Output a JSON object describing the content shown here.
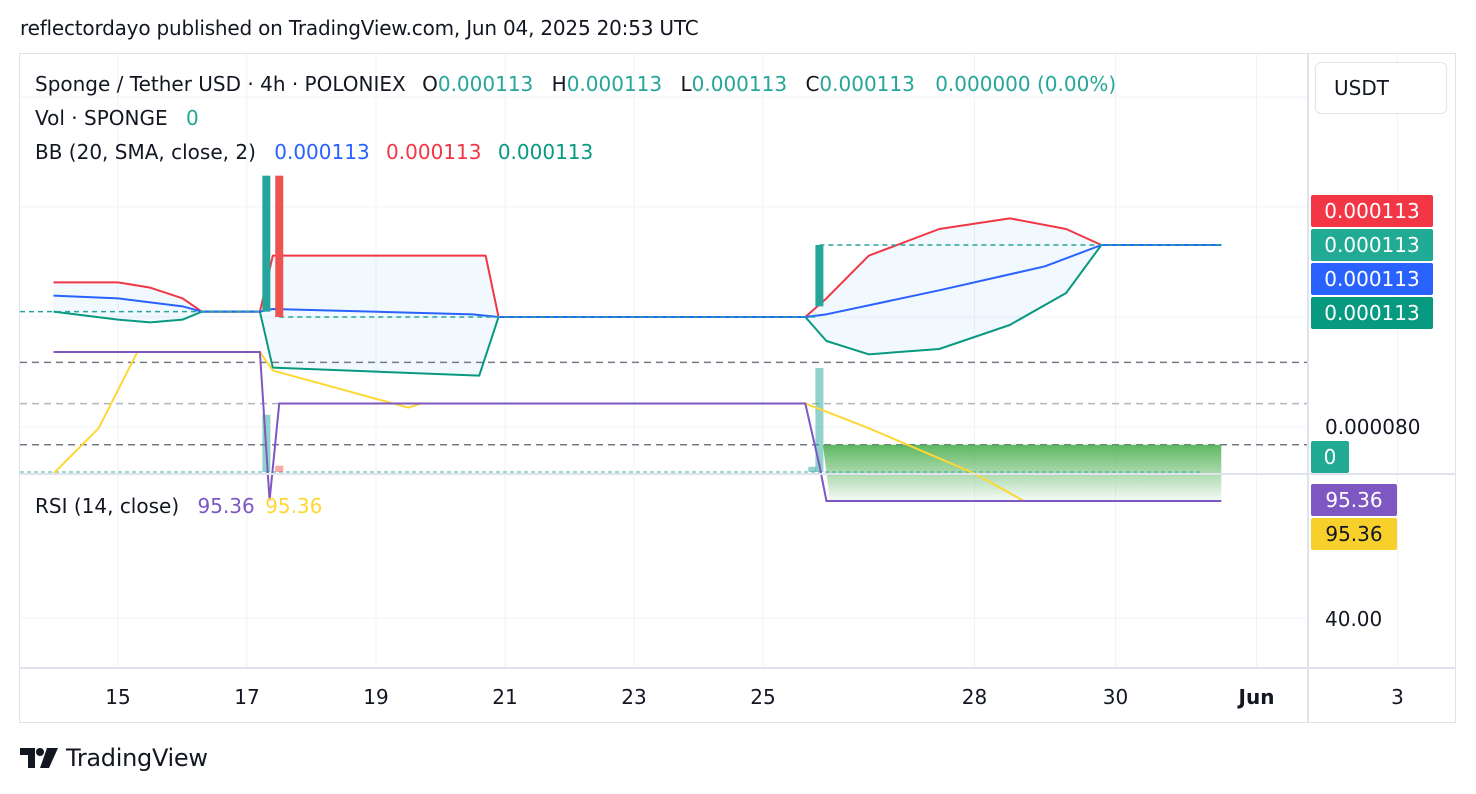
{
  "header": {
    "published": "reflectordayo published on TradingView.com, Jun 04, 2025 20:53 UTC"
  },
  "legend": {
    "symbol": "Sponge / Tether USD · 4h · POLONIEX",
    "o_label": "O",
    "o_value": "0.000113",
    "h_label": "H",
    "h_value": "0.000113",
    "l_label": "L",
    "l_value": "0.000113",
    "c_label": "C",
    "c_value": "0.000113",
    "change": "0.000000 (0.00%)",
    "vol_label": "Vol · SPONGE",
    "vol_value": "0",
    "bb_label": "BB (20, SMA, close, 2)",
    "bb_basis": "0.000113",
    "bb_upper": "0.000113",
    "bb_lower": "0.000113",
    "rsi_label": "RSI (14, close)",
    "rsi_value": "95.36",
    "rsi_ma_value": "95.36"
  },
  "currency": "USDT",
  "price_scale": {
    "tags": [
      {
        "text": "0.000113",
        "color": "#f23645"
      },
      {
        "text": "0.000113",
        "color": "#22ab94"
      },
      {
        "text": "0.000113",
        "color": "#2962ff"
      },
      {
        "text": "0.000113",
        "color": "#089981"
      }
    ],
    "tick_label": "0.000080",
    "volume_tag": {
      "text": "0",
      "color": "#22ab94"
    }
  },
  "rsi_scale": {
    "tags": [
      {
        "text": "95.36",
        "color": "#7e57c2"
      },
      {
        "text": "95.36",
        "color": "#f7d02c"
      }
    ],
    "tick_label": "40.00"
  },
  "time_axis": [
    "15",
    "17",
    "19",
    "21",
    "23",
    "25",
    "28",
    "30",
    "Jun",
    "3"
  ],
  "footer": {
    "brand": "TradingView"
  },
  "colors": {
    "bb_upper": "#f23645",
    "bb_basis": "#2962ff",
    "bb_lower": "#089981",
    "bb_fill": "#2196f3",
    "rsi": "#7e57c2",
    "rsi_ma": "#fdd835",
    "up": "#26a69a",
    "down": "#ef5350"
  },
  "chart_data": [
    {
      "type": "line",
      "panel": "price",
      "title": "Sponge / Tether USD · 4h · POLONIEX",
      "indicator": "BB (20, SMA, close, 2)",
      "series": [
        {
          "name": "upper",
          "points": [
            [
              14.0,
              0.0001116
            ],
            [
              15.0,
              0.0001116
            ],
            [
              15.5,
              0.0001114
            ],
            [
              16.0,
              0.000111
            ],
            [
              16.3,
              0.0001105
            ],
            [
              17.2,
              0.0001105
            ],
            [
              17.4,
              0.0001126
            ],
            [
              20.7,
              0.0001126
            ],
            [
              20.9,
              0.0001103
            ],
            [
              25.6,
              0.0001103
            ],
            [
              25.9,
              0.000111
            ],
            [
              26.5,
              0.0001126
            ],
            [
              27.5,
              0.0001136
            ],
            [
              28.5,
              0.000114
            ],
            [
              29.3,
              0.0001136
            ],
            [
              29.8,
              0.000113
            ],
            [
              31.5,
              0.000113
            ]
          ]
        },
        {
          "name": "basis",
          "points": [
            [
              14.0,
              0.0001111
            ],
            [
              15.0,
              0.000111
            ],
            [
              16.0,
              0.0001107
            ],
            [
              16.3,
              0.0001105
            ],
            [
              17.2,
              0.0001105
            ],
            [
              17.4,
              0.0001106
            ],
            [
              20.5,
              0.0001104
            ],
            [
              20.9,
              0.0001103
            ],
            [
              25.6,
              0.0001103
            ],
            [
              25.9,
              0.0001104
            ],
            [
              27.5,
              0.0001113
            ],
            [
              29.0,
              0.0001122
            ],
            [
              29.8,
              0.000113
            ],
            [
              31.5,
              0.000113
            ]
          ]
        },
        {
          "name": "lower",
          "points": [
            [
              14.0,
              0.0001105
            ],
            [
              15.0,
              0.0001102
            ],
            [
              15.5,
              0.0001101
            ],
            [
              16.0,
              0.0001102
            ],
            [
              16.3,
              0.0001105
            ],
            [
              17.2,
              0.0001105
            ],
            [
              17.4,
              0.0001084
            ],
            [
              20.6,
              0.0001081
            ],
            [
              20.9,
              0.0001103
            ],
            [
              25.6,
              0.0001103
            ],
            [
              25.9,
              0.0001094
            ],
            [
              26.5,
              0.0001089
            ],
            [
              27.5,
              0.0001091
            ],
            [
              28.5,
              0.00011
            ],
            [
              29.3,
              0.0001112
            ],
            [
              29.8,
              0.000113
            ],
            [
              31.5,
              0.000113
            ]
          ]
        }
      ],
      "candles": [
        {
          "t": 17.3,
          "open": 0.0001105,
          "close": 0.0001156,
          "color": "up"
        },
        {
          "t": 17.5,
          "open": 0.0001156,
          "close": 0.0001103,
          "color": "down"
        },
        {
          "t": 25.8,
          "open": 0.0001107,
          "close": 0.000113,
          "color": "up"
        }
      ],
      "volume": [
        {
          "t": 17.3,
          "value": 0.55,
          "color": "up"
        },
        {
          "t": 17.5,
          "value": 0.06,
          "color": "down"
        },
        {
          "t": 25.7,
          "value": 0.05,
          "color": "up"
        },
        {
          "t": 25.8,
          "value": 1.0,
          "color": "up"
        }
      ],
      "last_value": 0.000113
    },
    {
      "type": "line",
      "panel": "rsi",
      "title": "RSI (14, close)",
      "hlines": [
        70,
        50,
        30
      ],
      "series": [
        {
          "name": "rsi",
          "points": [
            [
              14.0,
              23
            ],
            [
              17.2,
              23
            ],
            [
              17.35,
              95
            ],
            [
              17.5,
              48
            ],
            [
              25.6,
              48
            ],
            [
              25.8,
              78
            ],
            [
              25.9,
              95.36
            ],
            [
              31.5,
              95.36
            ]
          ]
        },
        {
          "name": "rsi_ma",
          "points": [
            [
              14.0,
              82
            ],
            [
              14.7,
              60
            ],
            [
              15.3,
              23
            ],
            [
              17.2,
              23
            ],
            [
              17.4,
              32
            ],
            [
              19.5,
              50
            ],
            [
              19.7,
              48
            ],
            [
              25.6,
              48
            ],
            [
              26.5,
              60
            ],
            [
              28.0,
              82
            ],
            [
              28.7,
              95.36
            ],
            [
              31.5,
              95.36
            ]
          ]
        }
      ],
      "last_value": 95.36
    }
  ]
}
